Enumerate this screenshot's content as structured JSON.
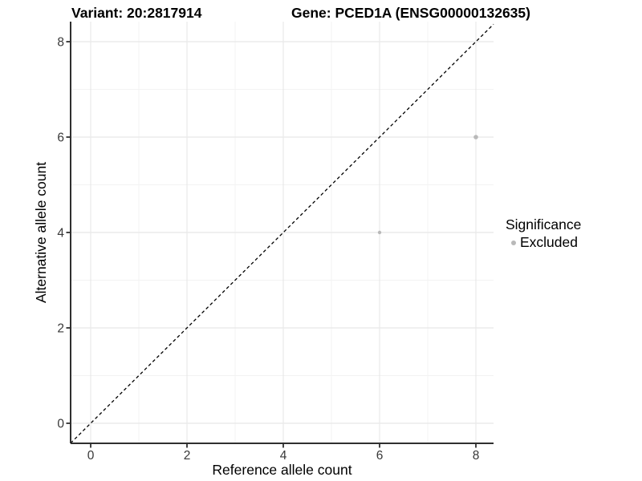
{
  "chart_data": {
    "type": "scatter",
    "titles": {
      "left": "Variant: 20:2817914",
      "right": "Gene: PCED1A (ENSG00000132635)"
    },
    "xlabel": "Reference allele count",
    "ylabel": "Alternative allele count",
    "x_ticks": {
      "labels": [
        "0",
        "2",
        "4",
        "6",
        "8"
      ],
      "values": [
        0,
        2,
        4,
        6,
        8
      ]
    },
    "y_ticks": {
      "labels": [
        "0",
        "2",
        "4",
        "6",
        "8"
      ],
      "values": [
        0,
        2,
        4,
        6,
        8
      ]
    },
    "x_minor": [
      1,
      3,
      5,
      7
    ],
    "y_minor": [
      1,
      3,
      5,
      7
    ],
    "xlim": [
      -0.42,
      8.37
    ],
    "ylim": [
      -0.42,
      8.42
    ],
    "grid": {
      "on": true,
      "major_color": "#e8e8e8",
      "minor_color": "#f3f3f3"
    },
    "identity_line": {
      "equation": "y = x",
      "style": "dashed",
      "color": "#000000"
    },
    "points": [
      {
        "x": 6,
        "y": 4,
        "r": 2.2,
        "significance": "Excluded"
      },
      {
        "x": 8,
        "y": 6,
        "r": 2.8,
        "significance": "Excluded"
      }
    ],
    "point_color": "#b9b9b9",
    "axis_color": "#2f2f2f",
    "legend": {
      "title": "Significance",
      "position": "right",
      "items": [
        {
          "label": "Excluded",
          "color": "#b9b9b9"
        }
      ]
    }
  }
}
